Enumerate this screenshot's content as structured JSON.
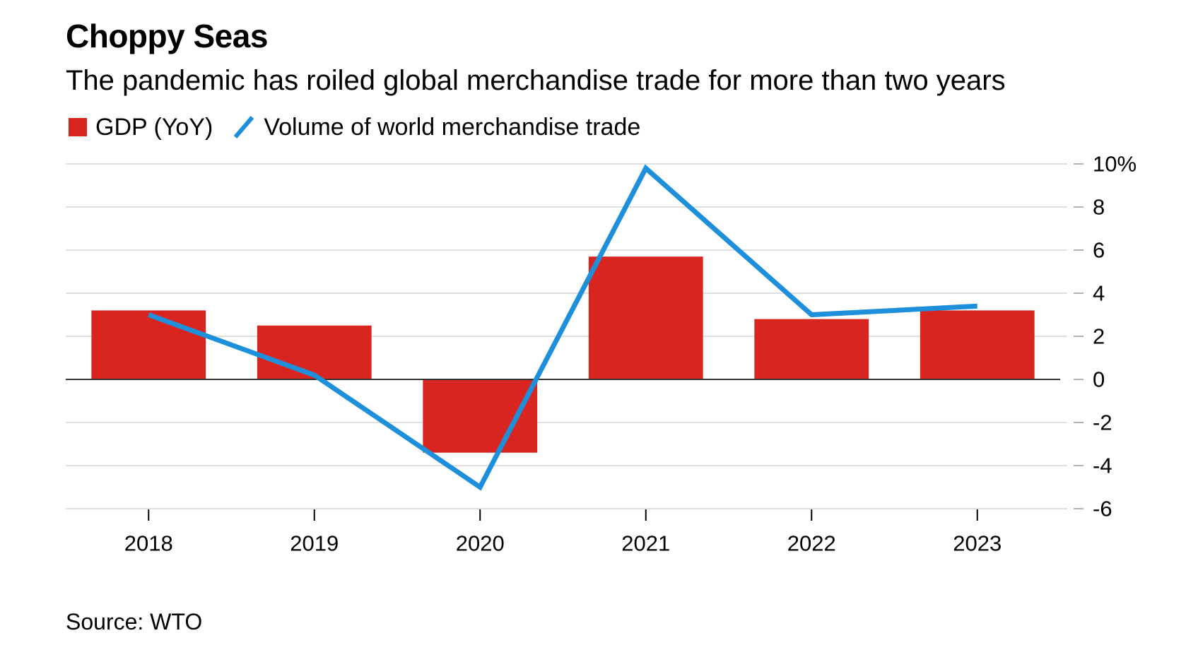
{
  "header": {
    "title": "Choppy Seas",
    "subtitle": "The pandemic has roiled global merchandise trade for more than two years"
  },
  "footer": {
    "source": "Source: WTO"
  },
  "colors": {
    "bar": "#d9251f",
    "line": "#1d8fdb",
    "grid": "#e0e0e0",
    "zero": "#333333"
  },
  "chart_data": {
    "type": "bar",
    "categories": [
      "2018",
      "2019",
      "2020",
      "2021",
      "2022",
      "2023"
    ],
    "series": [
      {
        "name": "GDP (YoY)",
        "type": "bar",
        "values": [
          3.2,
          2.5,
          -3.4,
          5.7,
          2.8,
          3.2
        ]
      },
      {
        "name": "Volume of world merchandise trade",
        "type": "line",
        "values": [
          3.0,
          0.2,
          -5.0,
          9.8,
          3.0,
          3.4
        ]
      }
    ],
    "ylim": [
      -6,
      10
    ],
    "yticks": [
      -6,
      -4,
      -2,
      0,
      2,
      4,
      6,
      8,
      10
    ],
    "ytick_labels": [
      "-6",
      "-4",
      "-2",
      "0",
      "2",
      "4",
      "6",
      "8",
      "10%"
    ],
    "title": "Choppy Seas",
    "subtitle": "The pandemic has roiled global merchandise trade for more than two years",
    "xlabel": "",
    "ylabel": "",
    "grid": true,
    "legend_position": "top-left",
    "y_axis_side": "right"
  }
}
